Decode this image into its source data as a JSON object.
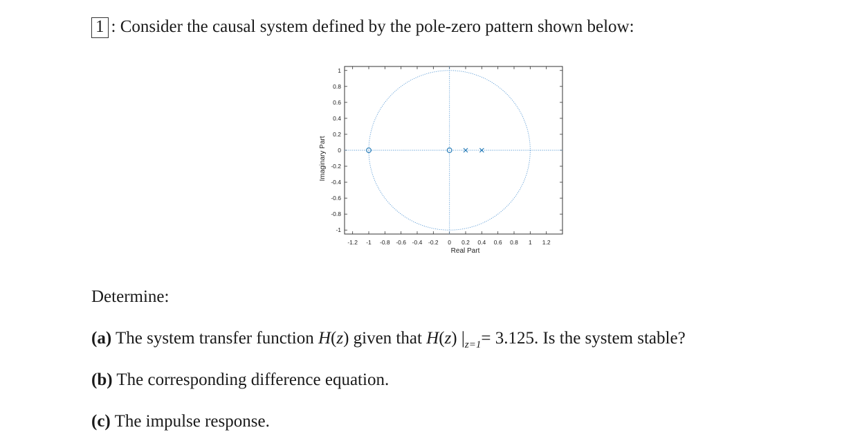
{
  "problem": {
    "number": "1",
    "intro": ": Consider the causal system defined by the pole-zero pattern shown below:"
  },
  "chart_data": {
    "type": "scatter",
    "xlabel": "Real Part",
    "ylabel": "Imaginary Part",
    "xlim": [
      -1.3,
      1.4
    ],
    "ylim": [
      -1.05,
      1.05
    ],
    "x_ticks": [
      "-1.2",
      "-1",
      "-0.8",
      "-0.6",
      "-0.4",
      "-0.2",
      "0",
      "0.2",
      "0.4",
      "0.6",
      "0.8",
      "1",
      "1.2"
    ],
    "y_ticks": [
      "1",
      "0.8",
      "0.6",
      "0.4",
      "0.2",
      "0",
      "-0.2",
      "-0.4",
      "-0.6",
      "-0.8",
      "-1"
    ],
    "unit_circle": true,
    "zeros": [
      {
        "re": -1.0,
        "im": 0
      },
      {
        "re": 0.0,
        "im": 0
      }
    ],
    "poles": [
      {
        "re": 0.2,
        "im": 0
      },
      {
        "re": 0.4,
        "im": 0
      }
    ],
    "marker_color": "#1f77b4",
    "circle_color": "#5b9bd5"
  },
  "questions": {
    "determine": "Determine:",
    "a_label": "(a)",
    "a_text_1": "The system transfer function",
    "a_H": "H",
    "a_z": "z",
    "a_text_2": "given that",
    "a_sub": "z=1",
    "a_value": "= 3.125. Is the system stable?",
    "b_label": "(b)",
    "b_text": "The corresponding difference equation.",
    "c_label": "(c)",
    "c_text": "The impulse response."
  }
}
